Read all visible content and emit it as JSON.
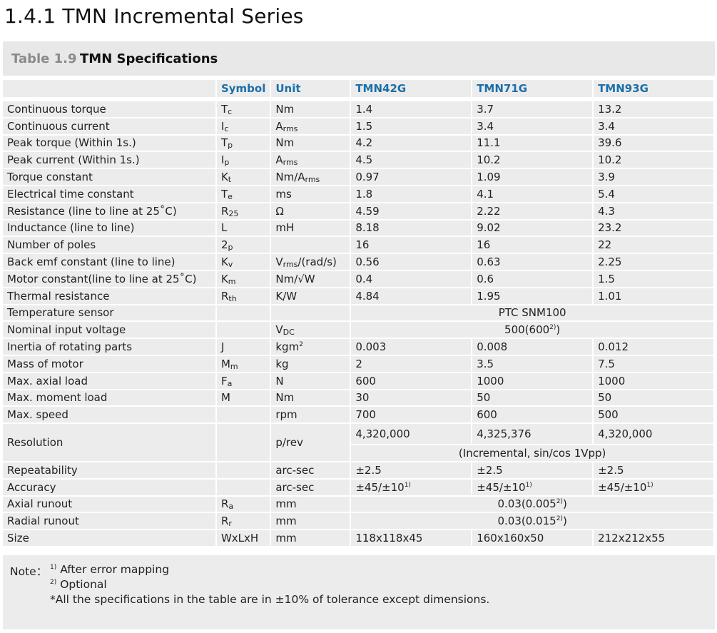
{
  "section_title": "1.4.1  TMN Incremental Series",
  "table_caption": {
    "number": "Table 1.9",
    "title": "TMN  Specifications"
  },
  "columns": [
    "",
    "Symbol",
    "Unit",
    "TMN42G",
    "TMN71G",
    "TMN93G"
  ],
  "rows": [
    {
      "param": "Continuous torque",
      "symbol": "Tc",
      "unit": "Nm",
      "values": [
        "1.4",
        "3.7",
        "13.2"
      ]
    },
    {
      "param": "Continuous current",
      "symbol": "Ic",
      "unit": "Arms",
      "values": [
        "1.5",
        "3.4",
        "3.4"
      ]
    },
    {
      "param": "Peak torque (Within 1s.)",
      "symbol": "Tp",
      "unit": "Nm",
      "values": [
        "4.2",
        "11.1",
        "39.6"
      ]
    },
    {
      "param": "Peak current (Within 1s.)",
      "symbol": "Ip",
      "unit": "Arms",
      "values": [
        "4.5",
        "10.2",
        "10.2"
      ]
    },
    {
      "param": "Torque constant",
      "symbol": "Kt",
      "unit": "Nm/Arms",
      "values": [
        "0.97",
        "1.09",
        "3.9"
      ]
    },
    {
      "param": "Electrical time constant",
      "symbol": "Te",
      "unit": "ms",
      "values": [
        "1.8",
        "4.1",
        "5.4"
      ]
    },
    {
      "param": "Resistance (line to line at 25˚C)",
      "symbol": "R25",
      "unit": "Ω",
      "values": [
        "4.59",
        "2.22",
        "4.3"
      ]
    },
    {
      "param": "Inductance (line to line)",
      "symbol": "L",
      "unit": "mH",
      "values": [
        "8.18",
        "9.02",
        "23.2"
      ]
    },
    {
      "param": "Number of poles",
      "symbol": "2p",
      "unit": "",
      "values": [
        "16",
        "16",
        "22"
      ]
    },
    {
      "param": "Back emf constant (line to line)",
      "symbol": "Kv",
      "unit": "Vrms/(rad/s)",
      "values": [
        "0.56",
        "0.63",
        "2.25"
      ]
    },
    {
      "param": "Motor constant(line to line at 25˚C)",
      "symbol": "Km",
      "unit": "Nm/√W",
      "values": [
        "0.4",
        "0.6",
        "1.5"
      ]
    },
    {
      "param": "Thermal resistance",
      "symbol": "Rth",
      "unit": "K/W",
      "values": [
        "4.84",
        "1.95",
        "1.01"
      ]
    },
    {
      "param": "Temperature sensor",
      "symbol": "",
      "unit": "",
      "merged": "PTC SNM100"
    },
    {
      "param": "Nominal input voltage",
      "symbol": "",
      "unit": "VDC",
      "merged": "500(600",
      "merged_sup": "2)",
      "merged_tail": ")"
    },
    {
      "param": "Inertia of rotating parts",
      "symbol": "J",
      "unit": "kgm",
      "unit_sup": "2",
      "values": [
        "0.003",
        "0.008",
        "0.012"
      ]
    },
    {
      "param": "Mass of motor",
      "symbol": "Mm",
      "unit": "kg",
      "values": [
        "2",
        "3.5",
        "7.5"
      ]
    },
    {
      "param": "Max. axial load",
      "symbol": "Fa",
      "unit": "N",
      "values": [
        "600",
        "1000",
        "1000"
      ]
    },
    {
      "param": "Max. moment load",
      "symbol": "M",
      "unit": "Nm",
      "values": [
        "30",
        "50",
        "50"
      ]
    },
    {
      "param": "Max. speed",
      "symbol": "",
      "unit": "rpm",
      "values": [
        "700",
        "600",
        "500"
      ]
    },
    {
      "param": "Resolution",
      "symbol": "",
      "unit": "p/rev",
      "values": [
        "4,320,000",
        "4,325,376",
        "4,320,000"
      ],
      "merged": "(Incremental, sin/cos 1Vpp)"
    },
    {
      "param": "Repeatability",
      "symbol": "",
      "unit": "arc-sec",
      "values": [
        "±2.5",
        "±2.5",
        "±2.5"
      ]
    },
    {
      "param": "Accuracy",
      "symbol": "",
      "unit": "arc-sec",
      "values": [
        "±45/±10",
        "±45/±10",
        "±45/±10"
      ],
      "value_sup": "1)"
    },
    {
      "param": "Axial runout",
      "symbol": "Ra",
      "unit": "mm",
      "merged": "0.03(0.005",
      "merged_sup": "2)",
      "merged_tail": ")"
    },
    {
      "param": "Radial runout",
      "symbol": "Rr",
      "unit": "mm",
      "merged": "0.03(0.015",
      "merged_sup": "2)",
      "merged_tail": ")"
    },
    {
      "param": "Size",
      "symbol": "WxLxH",
      "unit": "mm",
      "values": [
        "118x118x45",
        "160x160x50",
        "212x212x55"
      ]
    }
  ],
  "notes": {
    "label": "Note：",
    "n1_sup": "1)",
    "n1": "After error mapping",
    "n2_sup": "2)",
    "n2": "Optional",
    "n3": "*All the specifications in the table are in ±10% of tolerance except dimensions."
  },
  "colors": {
    "header_text": "#1b6fa8",
    "cell_bg": "#ececec",
    "caption_bg": "#e8e8e8"
  }
}
